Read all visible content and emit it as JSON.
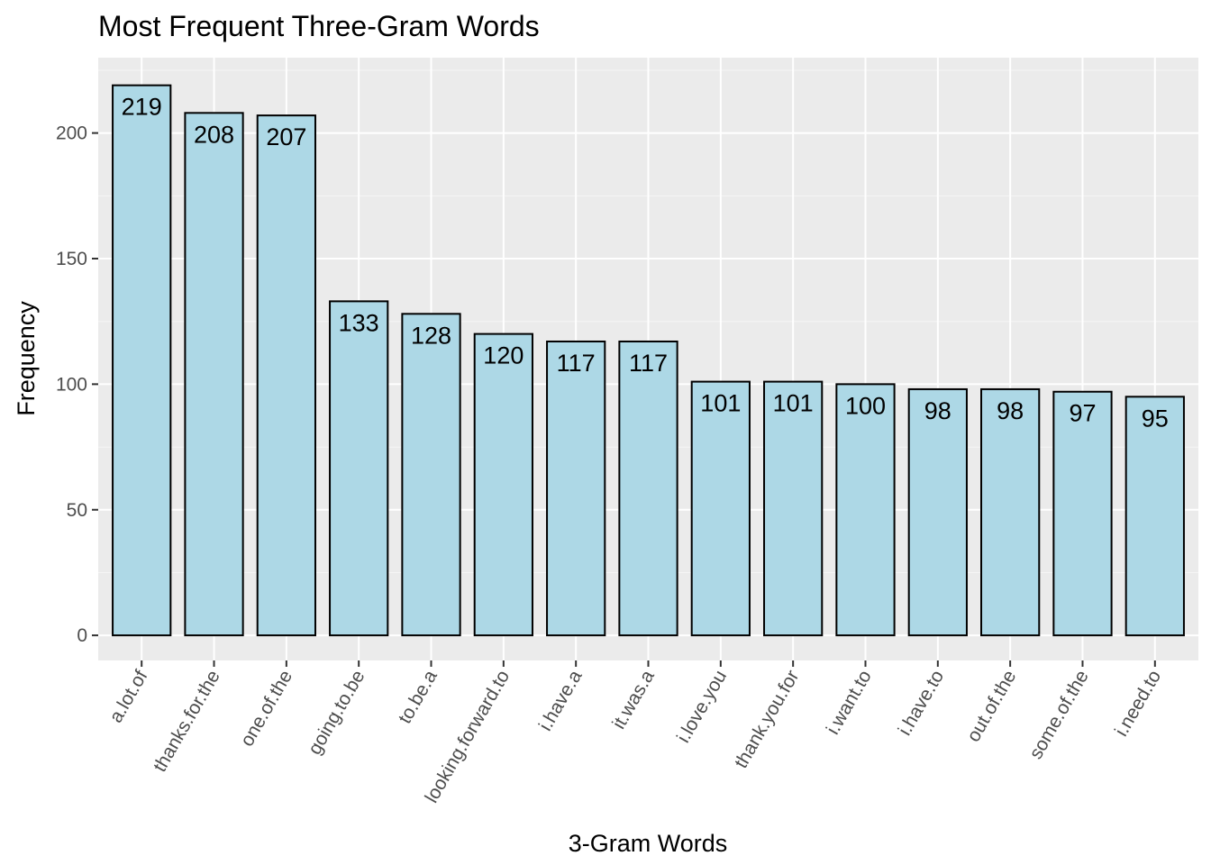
{
  "chart_data": {
    "type": "bar",
    "title": "Most Frequent Three-Gram Words",
    "xlabel": "3-Gram Words",
    "ylabel": "Frequency",
    "categories": [
      "a.lot.of",
      "thanks.for.the",
      "one.of.the",
      "going.to.be",
      "to.be.a",
      "looking.forward.to",
      "i.have.a",
      "it.was.a",
      "i.love.you",
      "thank.you.for",
      "i.want.to",
      "i.have.to",
      "out.of.the",
      "some.of.the",
      "i.need.to"
    ],
    "values": [
      219,
      208,
      207,
      133,
      128,
      120,
      117,
      117,
      101,
      101,
      100,
      98,
      98,
      97,
      95
    ],
    "ylim": [
      -10,
      230
    ],
    "yticks": [
      0,
      50,
      100,
      150,
      200
    ],
    "grid": true,
    "legend": "none",
    "colors": {
      "bar_fill": "#add8e6",
      "bar_stroke": "#000000",
      "panel_background": "#ebebeb",
      "grid": "#ffffff"
    }
  }
}
